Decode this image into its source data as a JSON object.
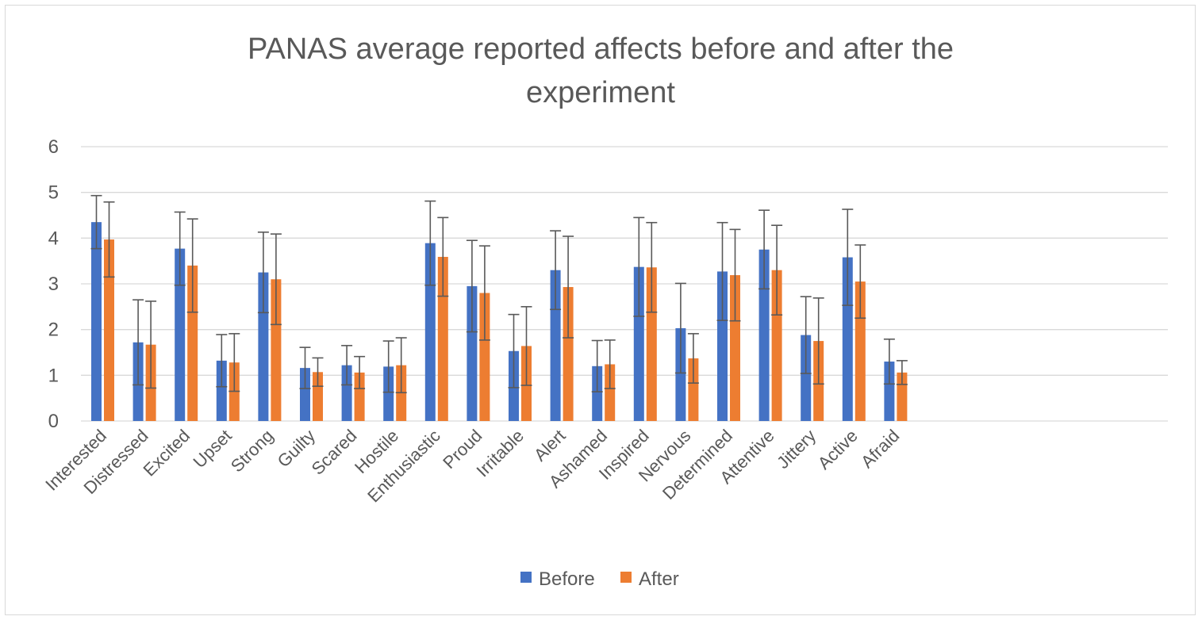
{
  "chart_data": {
    "type": "bar",
    "title_lines": [
      "PANAS average reported affects before and after the",
      "experiment"
    ],
    "xlabel": "",
    "ylabel": "",
    "ylim": [
      0,
      6
    ],
    "yticks": [
      0,
      1,
      2,
      3,
      4,
      5,
      6
    ],
    "grid": true,
    "legend_position": "bottom",
    "categories": [
      "Interested",
      "Distressed",
      "Excited",
      "Upset",
      "Strong",
      "Guilty",
      "Scared",
      "Hostile",
      "Enthusiastic",
      "Proud",
      "Irritable",
      "Alert",
      "Ashamed",
      "Inspired",
      "Nervous",
      "Determined",
      "Attentive",
      "Jittery",
      "Active",
      "Afraid"
    ],
    "series": [
      {
        "name": "Before",
        "color": "#4472c4",
        "values": [
          4.35,
          1.72,
          3.77,
          1.32,
          3.25,
          1.16,
          1.22,
          1.19,
          3.89,
          2.95,
          1.53,
          3.3,
          1.2,
          3.37,
          2.03,
          3.27,
          3.75,
          1.88,
          3.58,
          1.3
        ],
        "error": [
          0.58,
          0.93,
          0.8,
          0.57,
          0.88,
          0.45,
          0.43,
          0.56,
          0.92,
          1.0,
          0.8,
          0.86,
          0.56,
          1.08,
          0.98,
          1.07,
          0.86,
          0.84,
          1.05,
          0.49
        ]
      },
      {
        "name": "After",
        "color": "#ed7d31",
        "values": [
          3.97,
          1.67,
          3.4,
          1.28,
          3.1,
          1.07,
          1.06,
          1.22,
          3.59,
          2.8,
          1.64,
          2.93,
          1.24,
          3.36,
          1.37,
          3.19,
          3.3,
          1.75,
          3.05,
          1.06
        ],
        "error": [
          0.82,
          0.95,
          1.02,
          0.63,
          0.99,
          0.31,
          0.35,
          0.6,
          0.86,
          1.03,
          0.86,
          1.11,
          0.53,
          0.98,
          0.54,
          1.0,
          0.98,
          0.94,
          0.8,
          0.26
        ]
      }
    ],
    "error_bar_color": "#595959"
  }
}
